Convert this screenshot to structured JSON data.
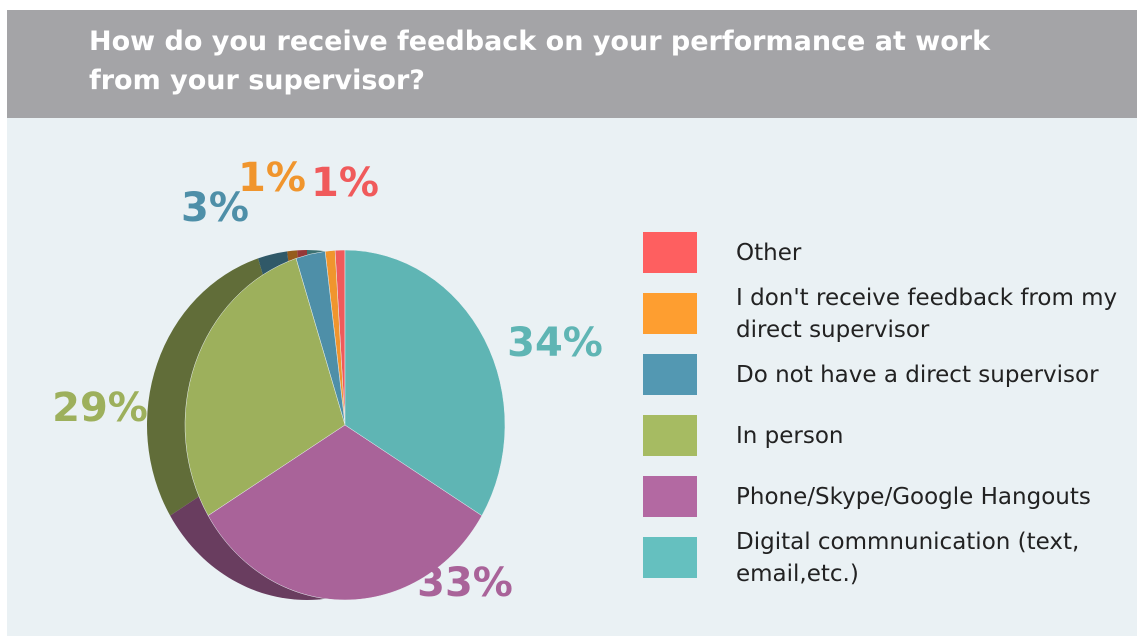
{
  "chart_data": {
    "type": "pie",
    "title": "How do you receive feedback on your performance at work from your supervisor?",
    "categories": [
      "Other",
      "I don't receive feedback from my direct supervisor",
      "Do not have a direct supervisor",
      "In person",
      "Phone/Skype/Google Hangouts",
      "Digital commnunication (text, email,etc.)"
    ],
    "values": [
      1,
      1,
      3,
      29,
      33,
      34
    ],
    "value_labels": [
      "1%",
      "1%",
      "3%",
      "29%",
      "33%",
      "34%"
    ],
    "colors": [
      "#f05a5b",
      "#f0952d",
      "#4e8fa8",
      "#9db05c",
      "#a96399",
      "#5fb5b4"
    ],
    "legend": "right"
  }
}
